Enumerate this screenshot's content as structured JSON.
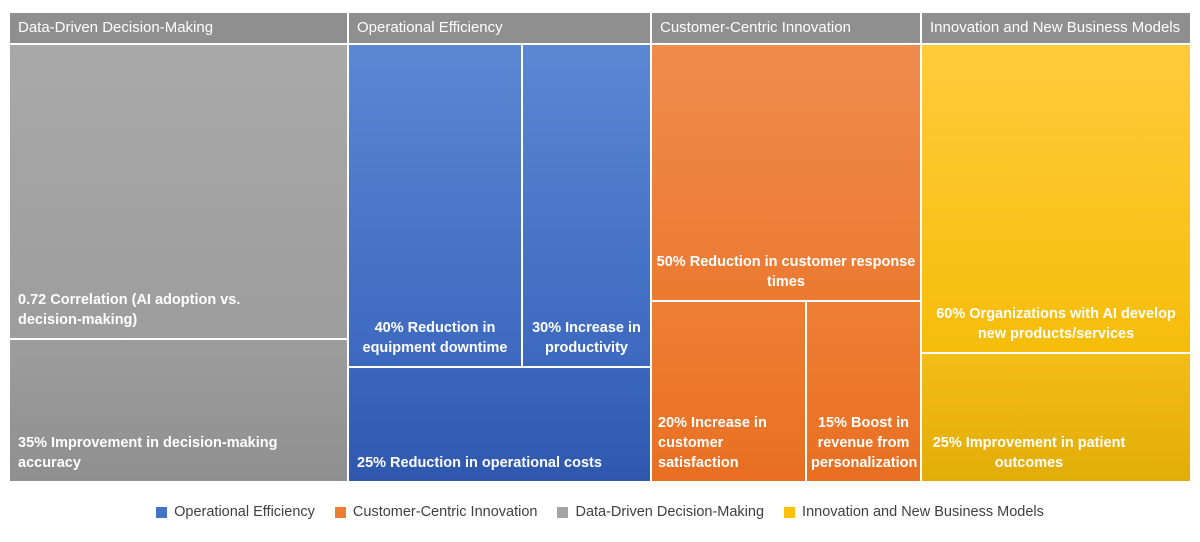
{
  "chart_data": {
    "type": "treemap",
    "groups": [
      {
        "name": "Data-Driven Decision-Making",
        "color": "#a5a5a5",
        "items": [
          {
            "label": "0.72 Correlation (AI adoption vs. decision-making)",
            "value": 0.72
          },
          {
            "label": "35% Improvement in decision-making accuracy",
            "value": 35
          }
        ]
      },
      {
        "name": "Operational Efficiency",
        "color": "#4472c4",
        "items": [
          {
            "label": "40% Reduction in equipment downtime",
            "value": 40
          },
          {
            "label": "30% Increase in productivity",
            "value": 30
          },
          {
            "label": "25% Reduction in operational costs",
            "value": 25
          }
        ]
      },
      {
        "name": "Customer-Centric Innovation",
        "color": "#ed7d31",
        "items": [
          {
            "label": "50% Reduction in customer response times",
            "value": 50
          },
          {
            "label": "20% Increase in customer satisfaction",
            "value": 20
          },
          {
            "label": "15% Boost in revenue from personalization",
            "value": 15
          }
        ]
      },
      {
        "name": "Innovation and New Business Models",
        "color": "#ffc000",
        "items": [
          {
            "label": "60% Organizations with AI develop new products/services",
            "value": 60
          },
          {
            "label": "25% Improvement in patient outcomes",
            "value": 25
          }
        ]
      }
    ],
    "legend": {
      "position": "bottom",
      "entries": [
        "Operational Efficiency",
        "Customer-Centric Innovation",
        "Data-Driven Decision-Making",
        "Innovation and New Business Models"
      ]
    }
  }
}
